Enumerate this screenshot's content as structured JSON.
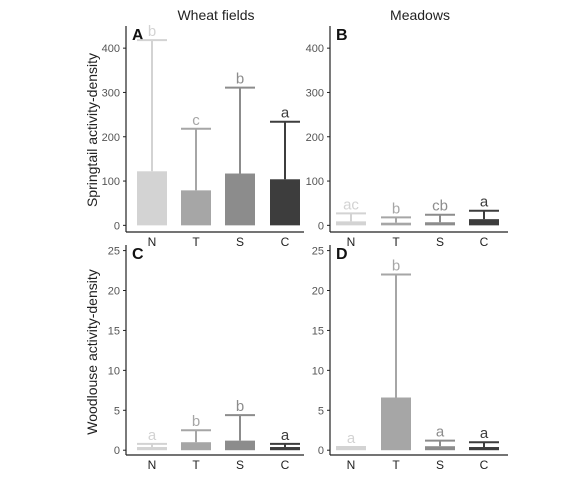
{
  "column_titles": [
    "Wheat fields",
    "Meadows"
  ],
  "row_labels": [
    "Springtail activity-density",
    "Woodlouse activity-density"
  ],
  "chart_data": [
    {
      "type": "bar",
      "panel": "A",
      "title": "Wheat fields",
      "ylabel": "Springtail activity-density",
      "categories": [
        "N",
        "T",
        "S",
        "C"
      ],
      "values": [
        122,
        79,
        117,
        104
      ],
      "error_upper": [
        418,
        218,
        311,
        234
      ],
      "letters": [
        "b",
        "c",
        "b",
        "a"
      ],
      "yticks": [
        0,
        100,
        200,
        300,
        400
      ],
      "ylim": [
        -15,
        450
      ],
      "colors": [
        "#d3d3d3",
        "#a6a6a6",
        "#8c8c8c",
        "#3d3d3d"
      ]
    },
    {
      "type": "bar",
      "panel": "B",
      "title": "Meadows",
      "ylabel": "",
      "categories": [
        "N",
        "T",
        "S",
        "C"
      ],
      "values": [
        9,
        6,
        7,
        14
      ],
      "error_upper": [
        27,
        18,
        24,
        33
      ],
      "letters": [
        "ac",
        "b",
        "cb",
        "a"
      ],
      "yticks": [
        0,
        100,
        200,
        300,
        400
      ],
      "ylim": [
        -15,
        450
      ],
      "colors": [
        "#d3d3d3",
        "#a6a6a6",
        "#8c8c8c",
        "#3d3d3d"
      ]
    },
    {
      "type": "bar",
      "panel": "C",
      "title": "",
      "ylabel": "Woodlouse activity-density",
      "categories": [
        "N",
        "T",
        "S",
        "C"
      ],
      "values": [
        0.4,
        1.0,
        1.2,
        0.4
      ],
      "error_upper": [
        0.8,
        2.5,
        4.4,
        0.8
      ],
      "letters": [
        "a",
        "b",
        "b",
        "a"
      ],
      "yticks": [
        0,
        5,
        10,
        15,
        20,
        25
      ],
      "ylim": [
        -0.6,
        25.7
      ],
      "colors": [
        "#d3d3d3",
        "#a6a6a6",
        "#8c8c8c",
        "#3d3d3d"
      ]
    },
    {
      "type": "bar",
      "panel": "D",
      "title": "",
      "ylabel": "",
      "categories": [
        "N",
        "T",
        "S",
        "C"
      ],
      "values": [
        0.4,
        6.6,
        0.5,
        0.4
      ],
      "error_upper": [
        0.4,
        22,
        1.2,
        1.0
      ],
      "letters": [
        "a",
        "b",
        "a",
        "a"
      ],
      "yticks": [
        0,
        5,
        10,
        15,
        20,
        25
      ],
      "ylim": [
        -0.6,
        25.7
      ],
      "colors": [
        "#d3d3d3",
        "#a6a6a6",
        "#8c8c8c",
        "#3d3d3d"
      ]
    }
  ]
}
